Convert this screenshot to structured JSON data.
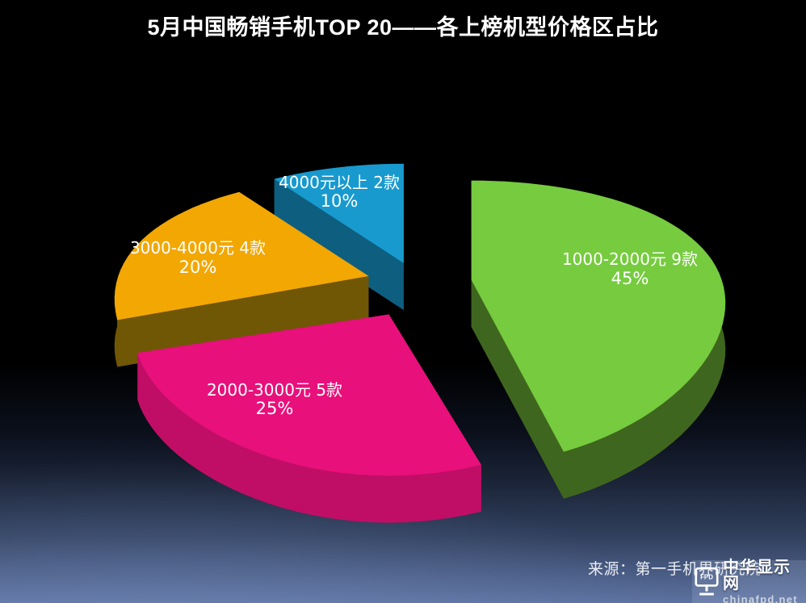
{
  "title": "5月中国畅销手机TOP 20——各上榜机型价格区占比",
  "source": {
    "text": "来源：第一手机界研究院"
  },
  "watermark": {
    "name": "中华显示网",
    "url": "chinafpd.net",
    "icon_label": "FPD"
  },
  "colors": {
    "background_top": "#000000",
    "background_bottom": "#5D72A1",
    "label_text": "#FFFFFF"
  },
  "chart_data": {
    "type": "pie",
    "style": "3d-exploded",
    "title": "5月中国畅销手机TOP 20——各上榜机型价格区占比",
    "unit": "%",
    "legend_position": "none",
    "start_angle_deg": 0,
    "direction": "clockwise",
    "slices": [
      {
        "label": "1000-2000元 9款",
        "category": "1000-2000元",
        "models": 9,
        "value": 45,
        "color": "#76CB3F",
        "side_color": "#3F661E",
        "dark_color": "#2E4D14"
      },
      {
        "label": "2000-3000元 5款",
        "category": "2000-3000元",
        "models": 5,
        "value": 25,
        "color": "#E8107B",
        "side_color": "#C00E66",
        "dark_color": "#8C0A4B"
      },
      {
        "label": "3000-4000元 4款",
        "category": "3000-4000元",
        "models": 4,
        "value": 20,
        "color": "#F2A702",
        "side_color": "#705706",
        "dark_color": "#574303"
      },
      {
        "label": "4000元以上 2款",
        "category": "4000元以上",
        "models": 2,
        "value": 10,
        "color": "#189ACF",
        "side_color": "#0E5E7F",
        "dark_color": "#0A4A66"
      }
    ]
  }
}
